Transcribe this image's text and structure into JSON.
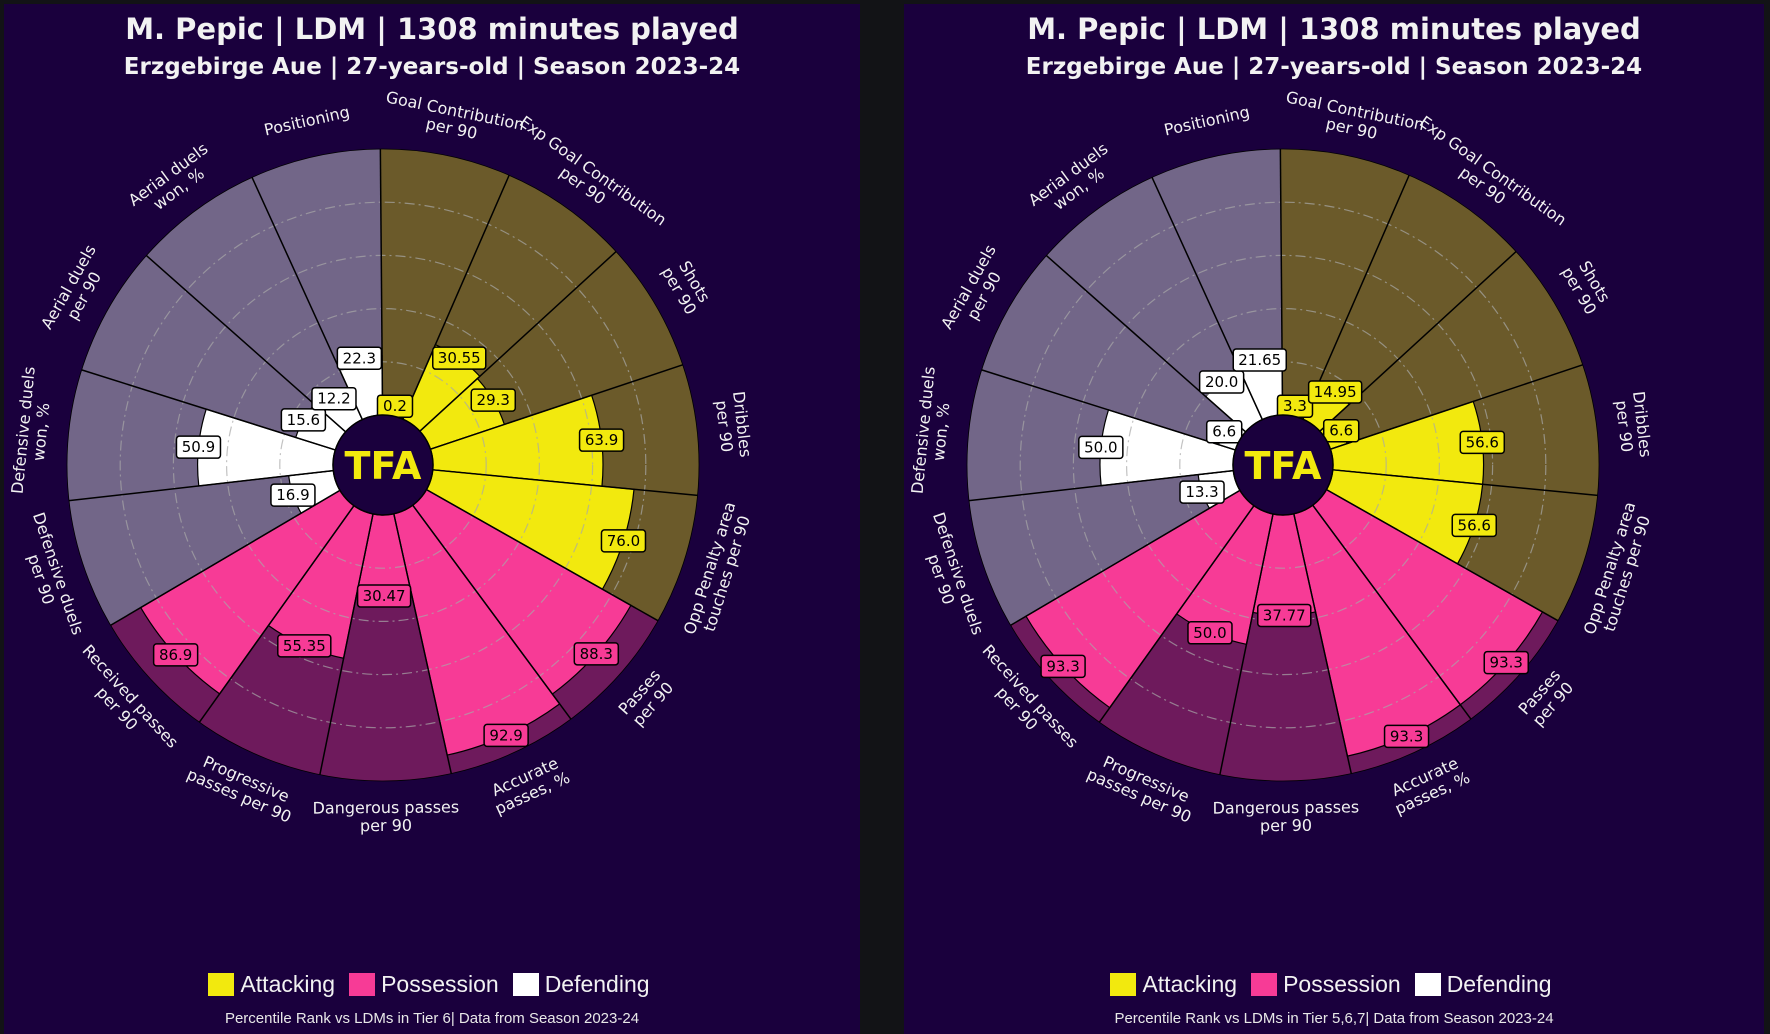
{
  "colors": {
    "background": "#1a003d",
    "attacking_fill": "#f2e90e",
    "attacking_bg": "#6b5a2a",
    "possession_fill": "#f73b96",
    "possession_bg": "#6e1a5c",
    "defending_fill": "#ffffff",
    "defending_bg": "#726688",
    "center_circle": "#1a003d",
    "logo": "#f2e90e",
    "text": "#f2f2f2"
  },
  "logo_text": "TFA",
  "chart_data": [
    {
      "type": "pie",
      "subtype": "polar-bar (pizza)",
      "title": "M. Pepic | LDM | 1308 minutes played",
      "subtitle": "Erzgebirge Aue | 27-years-old | Season 2023-24",
      "footnote": "Percentile Rank vs LDMs in Tier 6| Data from Season 2023-24",
      "rlim": [
        0,
        100
      ],
      "grid": "dash-dot rings at 20, 40, 60, 80",
      "legend": [
        {
          "label": "Attacking",
          "color": "#f2e90e"
        },
        {
          "label": "Possession",
          "color": "#f73b96"
        },
        {
          "label": "Defending",
          "color": "#ffffff"
        }
      ],
      "legend_position": "bottom",
      "categories": [
        {
          "label": [
            "Goal Contribution",
            "per 90"
          ],
          "group": "Attacking",
          "value": 0.2
        },
        {
          "label": [
            "Exp Goal Contribution",
            "per 90"
          ],
          "group": "Attacking",
          "value": 30.55
        },
        {
          "label": [
            "Shots",
            "per 90"
          ],
          "group": "Attacking",
          "value": 29.3
        },
        {
          "label": [
            "Dribbles",
            "per 90"
          ],
          "group": "Attacking",
          "value": 63.9
        },
        {
          "label": [
            "Opp Penalty area",
            "touches per 90"
          ],
          "group": "Attacking",
          "value": 76.0
        },
        {
          "label": [
            "Passes",
            "per 90"
          ],
          "group": "Possession",
          "value": 88.3
        },
        {
          "label": [
            "Accurate",
            "passes, %"
          ],
          "group": "Possession",
          "value": 92.9
        },
        {
          "label": [
            "Dangerous passes",
            "per 90"
          ],
          "group": "Possession",
          "value": 30.47
        },
        {
          "label": [
            "Progressive",
            "passes per 90"
          ],
          "group": "Possession",
          "value": 55.35
        },
        {
          "label": [
            "Received passes",
            "per 90"
          ],
          "group": "Possession",
          "value": 86.9
        },
        {
          "label": [
            "Defensive duels",
            "per 90"
          ],
          "group": "Defending",
          "value": 16.9
        },
        {
          "label": [
            "Defensive duels",
            "won, %"
          ],
          "group": "Defending",
          "value": 50.9
        },
        {
          "label": [
            "Aerial duels",
            "per 90"
          ],
          "group": "Defending",
          "value": 15.6
        },
        {
          "label": [
            "Aerial duels",
            "won, %"
          ],
          "group": "Defending",
          "value": 12.2
        },
        {
          "label": [
            "Positioning"
          ],
          "group": "Defending",
          "value": 22.3
        }
      ]
    },
    {
      "type": "pie",
      "subtype": "polar-bar (pizza)",
      "title": "M. Pepic | LDM | 1308 minutes played",
      "subtitle": "Erzgebirge Aue | 27-years-old | Season 2023-24",
      "footnote": "Percentile Rank vs LDMs in Tier 5,6,7| Data from Season 2023-24",
      "rlim": [
        0,
        100
      ],
      "grid": "dash-dot rings at 20, 40, 60, 80",
      "legend": [
        {
          "label": "Attacking",
          "color": "#f2e90e"
        },
        {
          "label": "Possession",
          "color": "#f73b96"
        },
        {
          "label": "Defending",
          "color": "#ffffff"
        }
      ],
      "legend_position": "bottom",
      "categories": [
        {
          "label": [
            "Goal Contribution",
            "per 90"
          ],
          "group": "Attacking",
          "value": 3.3
        },
        {
          "label": [
            "Exp Goal Contribution",
            "per 90"
          ],
          "group": "Attacking",
          "value": 14.95
        },
        {
          "label": [
            "Shots",
            "per 90"
          ],
          "group": "Attacking",
          "value": 6.6
        },
        {
          "label": [
            "Dribbles",
            "per 90"
          ],
          "group": "Attacking",
          "value": 56.6
        },
        {
          "label": [
            "Opp Penalty area",
            "touches per 90"
          ],
          "group": "Attacking",
          "value": 56.6
        },
        {
          "label": [
            "Passes",
            "per 90"
          ],
          "group": "Possession",
          "value": 93.3
        },
        {
          "label": [
            "Accurate",
            "passes, %"
          ],
          "group": "Possession",
          "value": 93.3
        },
        {
          "label": [
            "Dangerous passes",
            "per 90"
          ],
          "group": "Possession",
          "value": 37.77
        },
        {
          "label": [
            "Progressive",
            "passes per 90"
          ],
          "group": "Possession",
          "value": 50.0
        },
        {
          "label": [
            "Received passes",
            "per 90"
          ],
          "group": "Possession",
          "value": 93.3
        },
        {
          "label": [
            "Defensive duels",
            "per 90"
          ],
          "group": "Defending",
          "value": 13.3
        },
        {
          "label": [
            "Defensive duels",
            "won, %"
          ],
          "group": "Defending",
          "value": 50.0
        },
        {
          "label": [
            "Aerial duels",
            "per 90"
          ],
          "group": "Defending",
          "value": 6.6
        },
        {
          "label": [
            "Aerial duels",
            "won, %"
          ],
          "group": "Defending",
          "value": 20.0
        },
        {
          "label": [
            "Positioning"
          ],
          "group": "Defending",
          "value": 21.65
        }
      ]
    }
  ]
}
